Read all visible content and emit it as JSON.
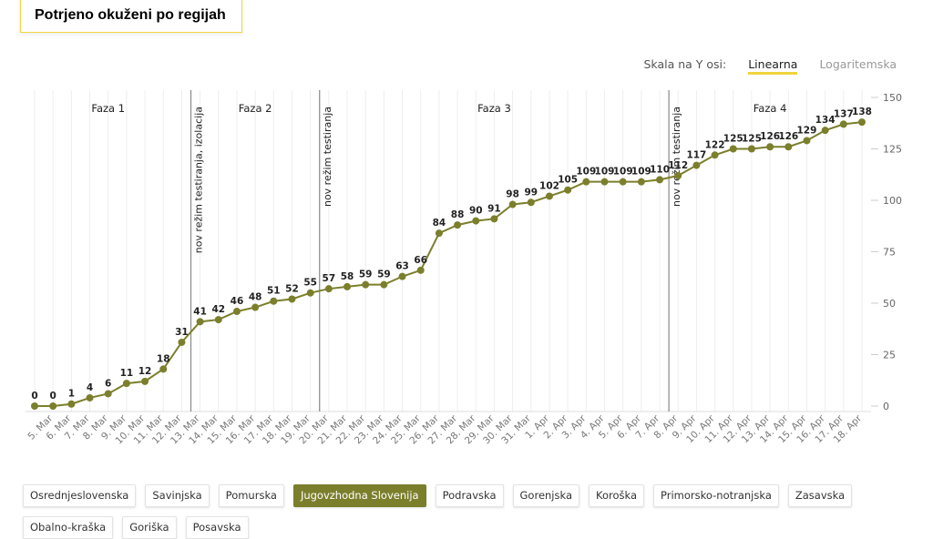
{
  "header": {
    "title": "Potrjeno okuženi po regijah"
  },
  "scale_toggle": {
    "label": "Skala na Y osi:",
    "options": [
      "Linearna",
      "Logaritemska"
    ],
    "active": 0
  },
  "regions": {
    "options": [
      "Osrednjeslovenska",
      "Savinjska",
      "Pomurska",
      "Jugovzhodna Slovenija",
      "Podravska",
      "Gorenjska",
      "Koroška",
      "Primorsko-notranjska",
      "Zasavska",
      "Obalno-kraška",
      "Goriška",
      "Posavska"
    ],
    "active": 3
  },
  "chart_data": {
    "type": "line",
    "categories": [
      null,
      "5. Mar",
      "6. Mar",
      "7. Mar",
      "8. Mar",
      "9. Mar",
      "10. Mar",
      "11. Mar",
      "12. Mar",
      "13. Mar",
      "14. Mar",
      "15. Mar",
      "16. Mar",
      "17. Mar",
      "18. Mar",
      "19. Mar",
      "20. Mar",
      "21. Mar",
      "22. Mar",
      "23. Mar",
      "24. Mar",
      "25. Mar",
      "26. Mar",
      "27. Mar",
      "28. Mar",
      "29. Mar",
      "30. Mar",
      "31. Mar",
      "1. Apr",
      "2. Apr",
      "3. Apr",
      "4. Apr",
      "5. Apr",
      "6. Apr",
      "7. Apr",
      "8. Apr",
      "9. Apr",
      "10. Apr",
      "11. Apr",
      "12. Apr",
      "13. Apr",
      "14. Apr",
      "15. Apr",
      "16. Apr",
      "17. Apr",
      "18. Apr"
    ],
    "series": [
      {
        "name": "Jugovzhodna Slovenija",
        "color": "#7b7f2c",
        "values": [
          0,
          0,
          1,
          4,
          6,
          11,
          12,
          18,
          31,
          41,
          42,
          46,
          48,
          51,
          52,
          55,
          57,
          58,
          59,
          59,
          63,
          66,
          84,
          88,
          90,
          91,
          98,
          99,
          102,
          105,
          109,
          109,
          109,
          109,
          110,
          112,
          117,
          122,
          125,
          125,
          126,
          126,
          129,
          134,
          137,
          138
        ]
      }
    ],
    "ylim": [
      0,
      150
    ],
    "yticks": [
      0,
      25,
      50,
      75,
      100,
      125,
      150
    ],
    "annotations": [
      {
        "label": "nov režim testiranja, izolacija",
        "at": "13. Mar"
      },
      {
        "label": "nov režim testiranja",
        "at": "20. Mar"
      },
      {
        "label": "nov režim testiranja",
        "at": "8. Apr"
      }
    ],
    "phases": [
      "Faza 1",
      "Faza 2",
      "Faza 3",
      "Faza 4"
    ]
  }
}
